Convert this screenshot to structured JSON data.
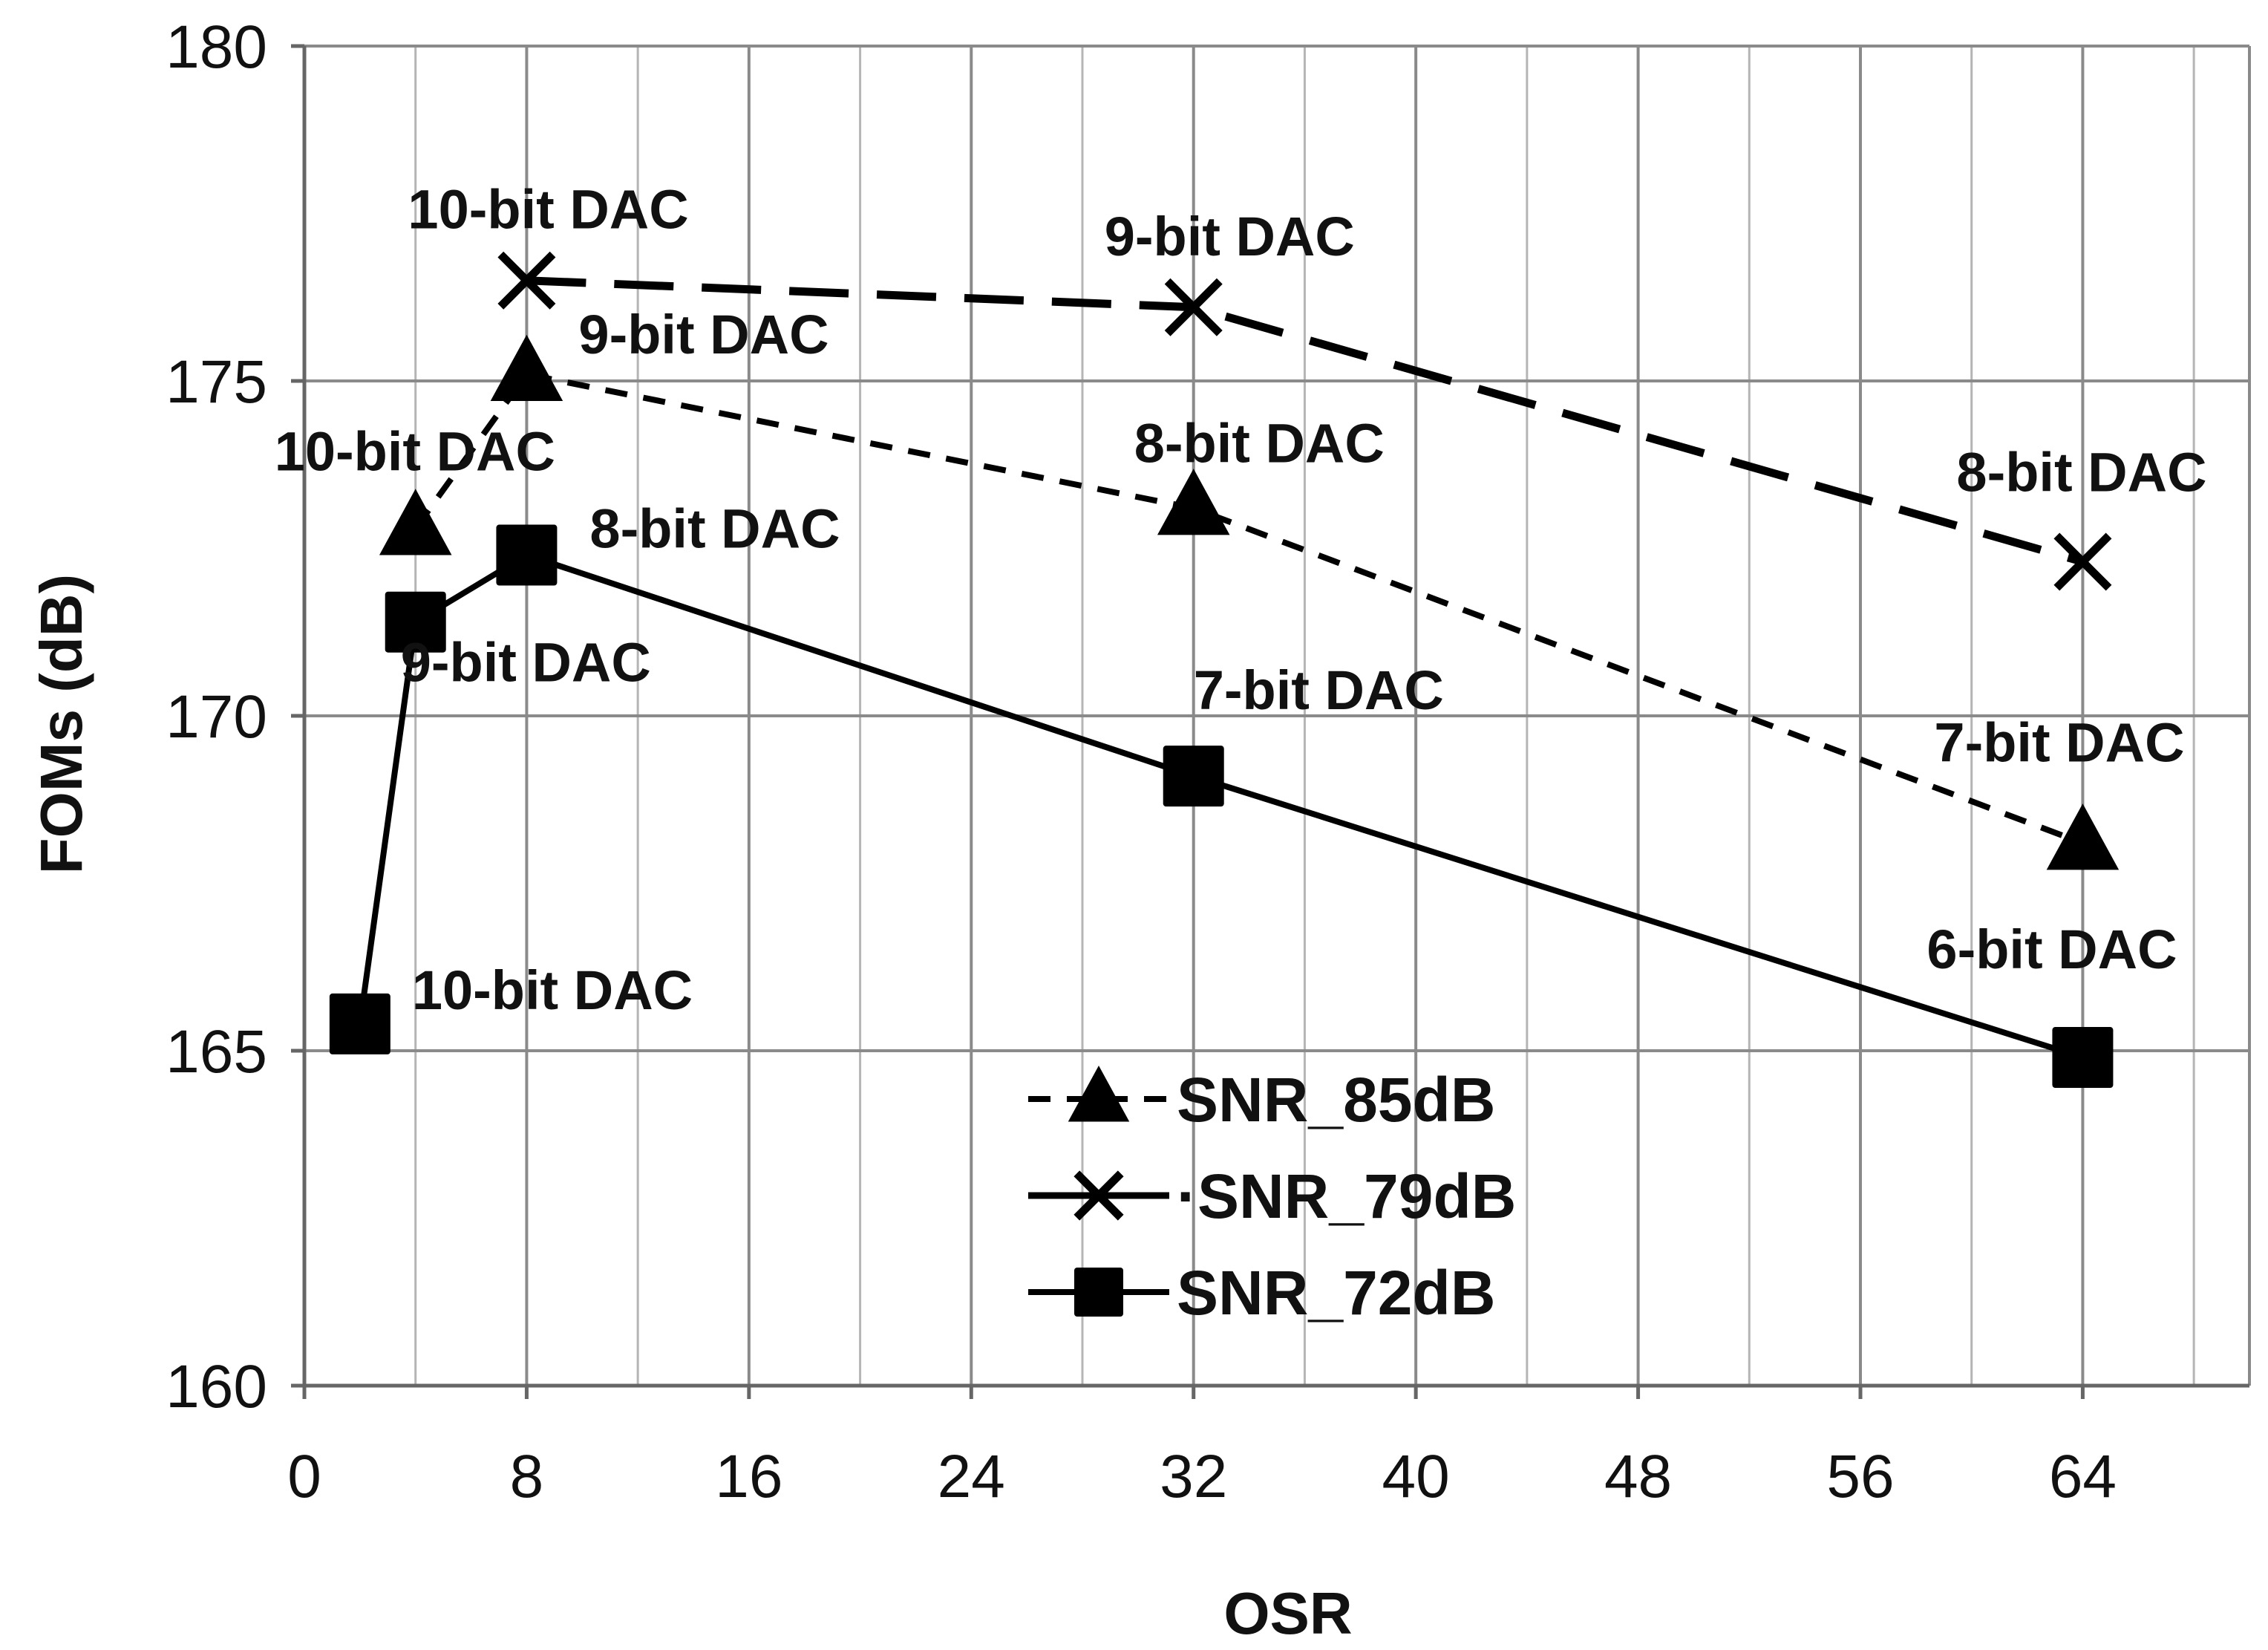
{
  "chart_data": {
    "type": "line",
    "title": "",
    "xlabel": "OSR",
    "ylabel": "FOMs (dB)",
    "xlim": [
      0,
      70
    ],
    "ylim": [
      160,
      180
    ],
    "xticks": [
      0,
      8,
      16,
      24,
      32,
      40,
      48,
      56,
      64
    ],
    "yticks": [
      160,
      165,
      170,
      175,
      180
    ],
    "minor_xgrid_step": 4,
    "grid": true,
    "legend_position": "bottom-center",
    "series": [
      {
        "name": "SNR_85dB",
        "line_style": "short-dash",
        "marker": "triangle",
        "x": [
          4,
          8,
          32,
          64
        ],
        "y": [
          172.8,
          175.1,
          173.1,
          168.1
        ],
        "labels": [
          "10-bit DAC",
          "9-bit DAC",
          "8-bit DAC",
          "7-bit DAC"
        ]
      },
      {
        "name": "SNR_79dB",
        "line_style": "long-dash",
        "marker": "x",
        "x": [
          8,
          32,
          64
        ],
        "y": [
          176.5,
          176.1,
          172.3
        ],
        "labels": [
          "10-bit DAC",
          "9-bit DAC",
          "8-bit DAC"
        ]
      },
      {
        "name": "SNR_72dB",
        "line_style": "solid",
        "marker": "square",
        "x": [
          2,
          4,
          8,
          32,
          64
        ],
        "y": [
          165.4,
          171.4,
          172.4,
          169.1,
          164.9
        ],
        "labels": [
          "10-bit DAC",
          "9-bit DAC",
          "8-bit DAC",
          "7-bit DAC",
          "6-bit DAC"
        ]
      }
    ],
    "legend_labels": [
      "SNR_85dB",
      "·SNR_79dB",
      "SNR_72dB"
    ]
  }
}
